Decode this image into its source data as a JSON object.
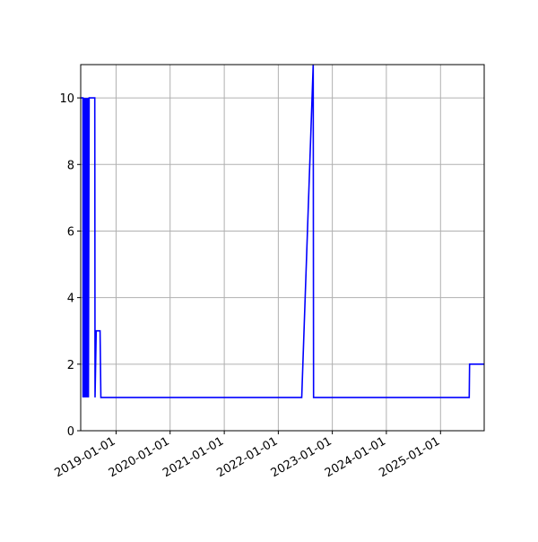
{
  "chart_data": {
    "type": "line",
    "title": "",
    "xlabel": "",
    "ylabel": "",
    "grid": true,
    "line_color": "#0000ff",
    "xlim": [
      "2018-05-07",
      "2025-10-23"
    ],
    "ylim": [
      0,
      11
    ],
    "xticks": [
      "2019-01-01",
      "2020-01-01",
      "2021-01-01",
      "2022-01-01",
      "2023-01-01",
      "2024-01-01",
      "2025-01-01"
    ],
    "yticks": [
      0,
      2,
      4,
      6,
      8,
      10
    ],
    "series": [
      {
        "x": [
          "2018-05-07",
          "2018-05-22",
          "2018-05-23",
          "2018-05-28",
          "2018-06-01",
          "2018-06-06",
          "2018-06-10",
          "2018-06-15",
          "2018-06-19",
          "2018-06-24",
          "2018-06-28",
          "2018-07-03",
          "2018-08-10",
          "2018-08-12",
          "2018-08-20",
          "2018-09-15",
          "2018-09-20",
          "2022-06-08",
          "2022-08-25",
          "2022-08-27",
          "2025-07-14",
          "2025-07-16",
          "2025-10-23"
        ],
        "y": [
          10,
          10,
          1,
          10,
          1,
          10,
          1,
          10,
          1,
          10,
          1,
          10,
          10,
          1,
          3,
          3,
          1,
          1,
          11,
          1,
          1,
          2,
          2
        ]
      }
    ]
  }
}
